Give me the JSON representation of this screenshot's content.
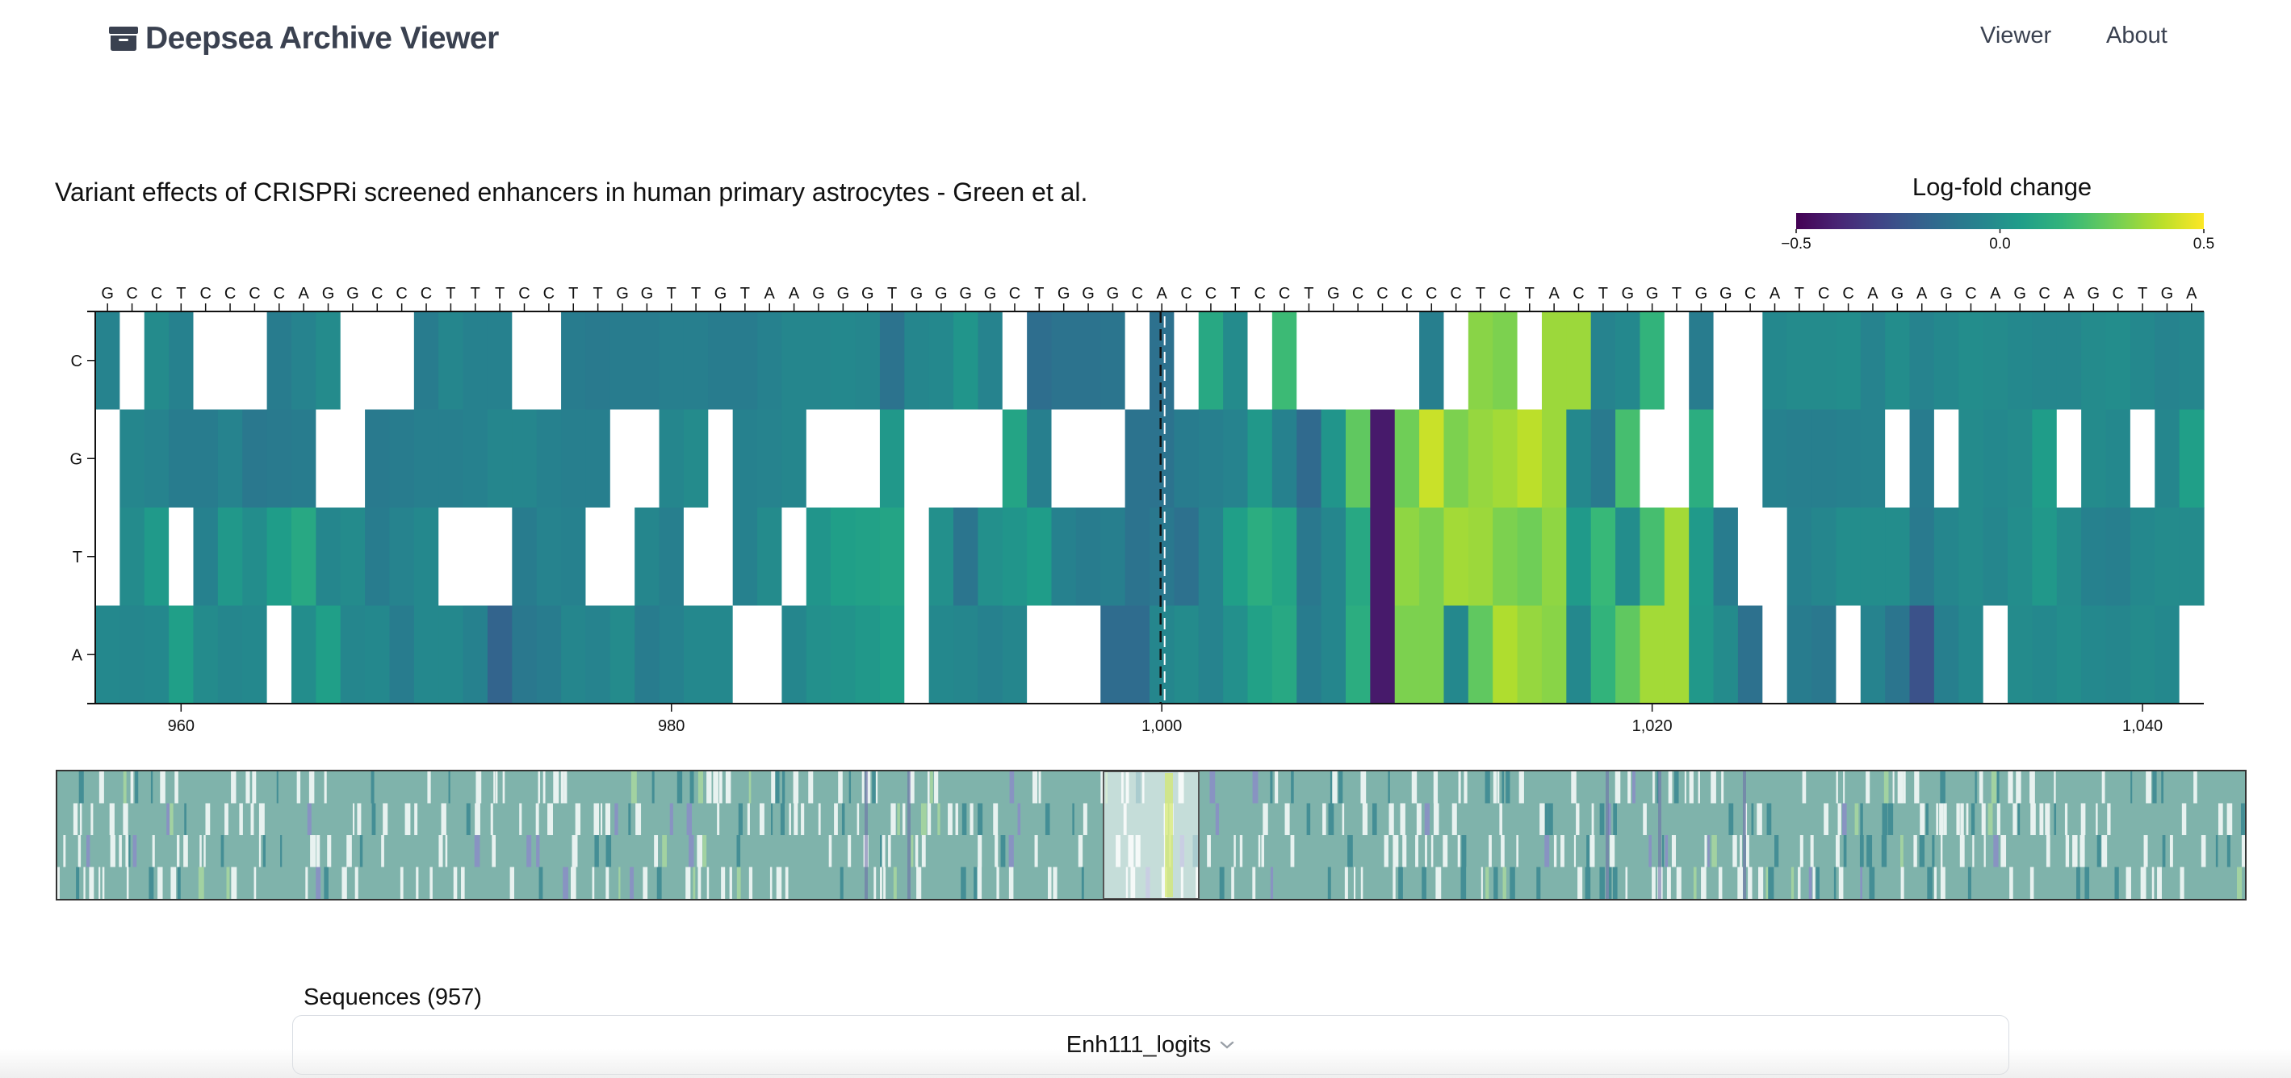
{
  "navbar": {
    "brand": "Deepsea Archive Viewer",
    "brand_icon": "archive-box-icon",
    "links": [
      {
        "label": "Viewer"
      },
      {
        "label": "About"
      }
    ]
  },
  "page": {
    "title": "Variant effects of CRISPRi screened enhancers in human primary astrocytes - Green et al."
  },
  "legend": {
    "title": "Log-fold change",
    "min": -0.5,
    "mid": 0.0,
    "max": 0.5,
    "tick_labels": [
      "−0.5",
      "0.0",
      "0.5"
    ],
    "colormap": "viridis"
  },
  "chart_data": {
    "type": "heatmap",
    "title": "",
    "rows": [
      "C",
      "G",
      "T",
      "A"
    ],
    "xlim": [
      956.5,
      1042.5
    ],
    "x_ticks": [
      960,
      980,
      1000,
      1020,
      1040
    ],
    "x_tick_labels": [
      "960",
      "980",
      "1,000",
      "1,020",
      "1,040"
    ],
    "sequence": "GCCTCCCCAGGCCCTTTCCTTGGTTGTAAGGGTGGGGCTGGGCACCTCCTGCCCCCTCTACTGGTGGCATCCAGAGCAGCAGCTGA",
    "sequence_start": 957,
    "highlighted_position": 1000,
    "value_range": [
      -0.5,
      0.5
    ],
    "reference_cells": "white (no change)",
    "values": {
      "C": [
        -0.05,
        null,
        -0.02,
        -0.06,
        null,
        null,
        null,
        -0.08,
        -0.05,
        -0.02,
        null,
        null,
        null,
        -0.08,
        -0.04,
        -0.06,
        -0.06,
        null,
        null,
        -0.08,
        -0.09,
        -0.08,
        -0.08,
        -0.07,
        -0.07,
        -0.08,
        -0.08,
        -0.06,
        -0.04,
        -0.04,
        -0.03,
        -0.04,
        -0.12,
        -0.04,
        -0.03,
        0.02,
        -0.05,
        null,
        -0.14,
        -0.12,
        -0.12,
        -0.11,
        null,
        -0.13,
        null,
        0.1,
        -0.02,
        null,
        0.18,
        null,
        null,
        null,
        null,
        null,
        -0.07,
        null,
        0.32,
        0.3,
        null,
        0.35,
        0.35,
        -0.05,
        -0.03,
        0.15,
        null,
        -0.08,
        null,
        null,
        -0.03,
        -0.02,
        -0.02,
        -0.01,
        -0.05,
        -0.01,
        -0.05,
        -0.03,
        -0.01,
        -0.02,
        -0.03,
        -0.04,
        -0.04,
        -0.02,
        -0.01,
        -0.03,
        -0.05,
        -0.04
      ],
      "G": [
        null,
        -0.04,
        -0.05,
        -0.08,
        -0.08,
        -0.05,
        -0.1,
        -0.09,
        -0.08,
        null,
        null,
        -0.09,
        -0.08,
        -0.07,
        -0.07,
        -0.06,
        -0.04,
        -0.04,
        -0.06,
        -0.07,
        -0.07,
        null,
        null,
        -0.04,
        -0.02,
        null,
        -0.06,
        -0.05,
        -0.04,
        null,
        null,
        null,
        0.03,
        null,
        null,
        null,
        null,
        0.08,
        -0.07,
        null,
        null,
        null,
        -0.12,
        -0.12,
        -0.08,
        -0.07,
        -0.05,
        0.03,
        -0.06,
        -0.16,
        0.02,
        0.25,
        -0.43,
        0.28,
        0.42,
        0.3,
        0.34,
        0.36,
        0.4,
        0.35,
        -0.03,
        -0.09,
        0.2,
        null,
        null,
        0.12,
        null,
        null,
        -0.06,
        -0.07,
        -0.07,
        -0.06,
        -0.05,
        null,
        -0.08,
        null,
        -0.02,
        -0.03,
        -0.02,
        0.05,
        null,
        -0.02,
        -0.03,
        null,
        -0.04,
        0.06
      ],
      "T": [
        null,
        -0.02,
        0.04,
        null,
        -0.06,
        0.03,
        -0.01,
        0.05,
        0.1,
        -0.04,
        -0.02,
        -0.08,
        -0.05,
        -0.03,
        null,
        null,
        null,
        -0.08,
        -0.05,
        -0.06,
        null,
        null,
        -0.04,
        -0.07,
        null,
        null,
        -0.06,
        -0.02,
        null,
        0.02,
        0.06,
        0.07,
        0.08,
        null,
        0.0,
        -0.11,
        0.0,
        0.02,
        0.05,
        -0.06,
        -0.08,
        -0.07,
        -0.12,
        -0.1,
        -0.13,
        -0.05,
        0.06,
        0.12,
        0.08,
        -0.1,
        -0.04,
        0.1,
        -0.43,
        0.33,
        0.3,
        0.36,
        0.35,
        0.3,
        0.28,
        0.33,
        0.04,
        0.17,
        -0.01,
        0.2,
        0.36,
        0.04,
        -0.08,
        null,
        null,
        -0.06,
        -0.04,
        -0.01,
        -0.01,
        -0.01,
        -0.09,
        -0.04,
        -0.02,
        -0.04,
        -0.01,
        0.03,
        -0.02,
        -0.06,
        -0.07,
        -0.03,
        -0.02,
        -0.02
      ],
      "A": [
        -0.03,
        -0.04,
        -0.03,
        0.06,
        -0.02,
        -0.04,
        -0.03,
        null,
        -0.01,
        0.06,
        -0.04,
        -0.03,
        -0.08,
        -0.03,
        -0.03,
        -0.06,
        -0.18,
        -0.1,
        -0.08,
        -0.04,
        -0.05,
        -0.02,
        -0.08,
        -0.06,
        -0.03,
        -0.03,
        null,
        null,
        -0.04,
        0.0,
        0.01,
        0.03,
        0.06,
        null,
        -0.03,
        -0.04,
        -0.06,
        -0.04,
        null,
        null,
        null,
        -0.15,
        -0.15,
        -0.04,
        -0.02,
        -0.05,
        0.0,
        0.07,
        0.1,
        -0.08,
        -0.04,
        0.12,
        -0.43,
        0.3,
        0.3,
        -0.03,
        0.25,
        0.38,
        0.34,
        0.32,
        -0.03,
        0.15,
        0.25,
        0.36,
        0.36,
        0.03,
        -0.02,
        -0.13,
        null,
        -0.08,
        -0.1,
        null,
        -0.05,
        -0.11,
        -0.25,
        -0.07,
        -0.03,
        null,
        -0.02,
        -0.03,
        -0.01,
        -0.03,
        -0.04,
        -0.02,
        -0.03,
        null
      ]
    }
  },
  "overview": {
    "description": "Full-length sequence overview strip with selected window"
  },
  "sequences": {
    "label": "Sequences (957)",
    "selected": "Enh111_logits"
  }
}
